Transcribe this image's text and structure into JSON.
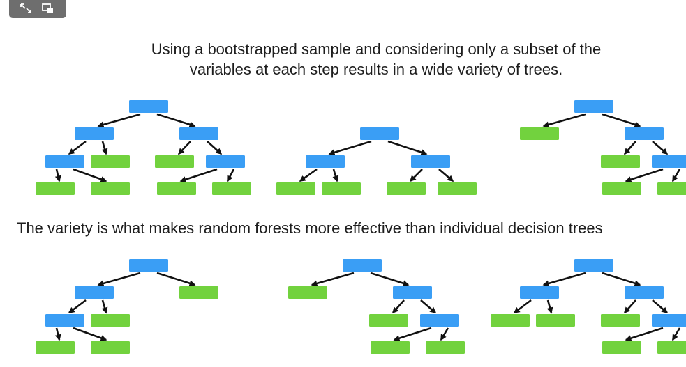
{
  "video_controls": {
    "expand_icon": "expand-arrows-icon",
    "pip_icon": "picture-in-picture-icon",
    "bg_color": "#6e6e6e"
  },
  "captions": {
    "line1": "Using a bootstrapped sample and considering only a subset of the",
    "line2": "variables at each step results in a wide variety of trees.",
    "line3": "The variety is what makes random forests more effective than individual decision trees"
  },
  "colors": {
    "split_node": "#3a9ef5",
    "leaf_node": "#72d23e",
    "arrow": "#111111",
    "text": "#1e1e1e"
  }
}
